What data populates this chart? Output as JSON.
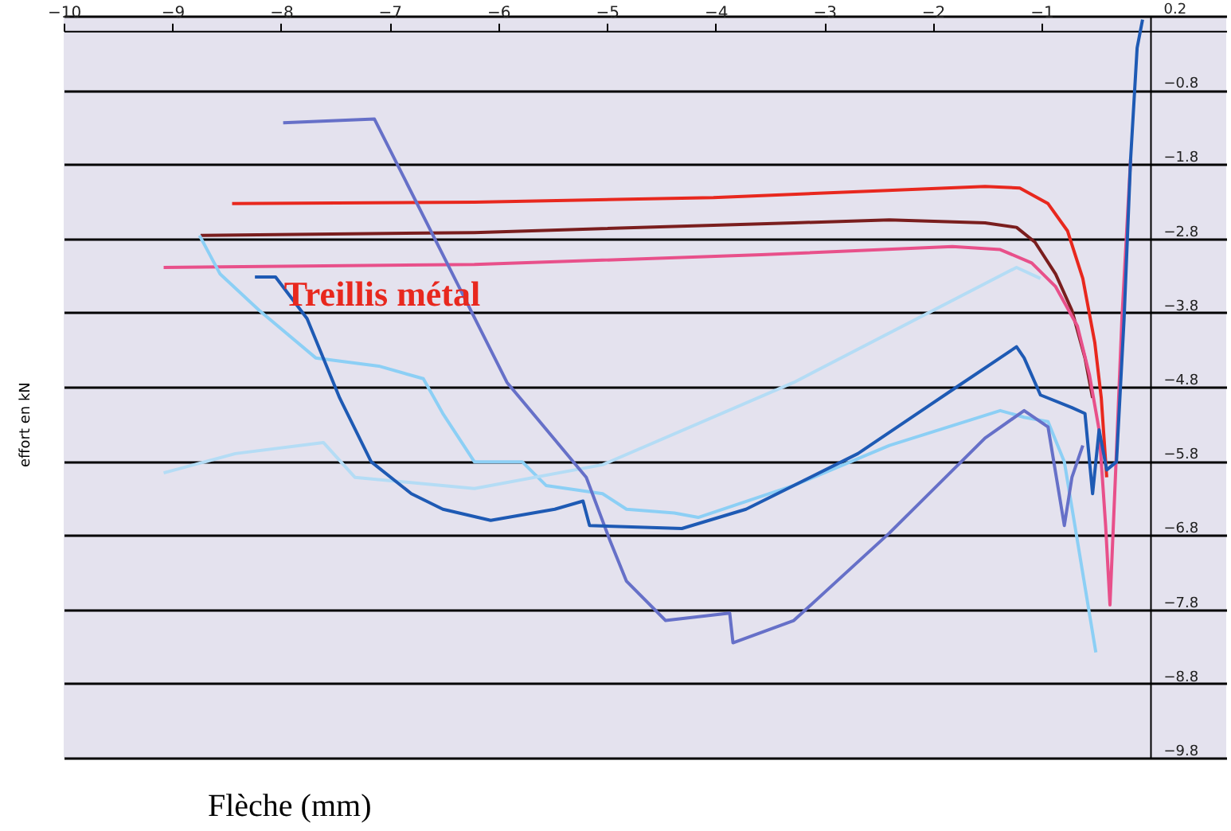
{
  "chart_data": {
    "type": "line",
    "xlabel": "Flèche (mm)",
    "ylabel": "effort en kN",
    "xlim": [
      -10,
      0.7
    ],
    "xticks": [
      -10,
      -9,
      -8,
      -7,
      -6,
      -5,
      -4,
      -3,
      -2,
      -1
    ],
    "ylim": [
      -9.8,
      0.2
    ],
    "yticks": [
      0.2,
      -0.8,
      -1.8,
      -2.8,
      -3.8,
      -4.8,
      -5.8,
      -6.8,
      -7.8,
      -8.8,
      -9.8
    ],
    "grid": "y",
    "marker": "none",
    "line_style": "solid",
    "annotations": [
      "Treillis métal"
    ],
    "series": [
      {
        "color": "#e8281e",
        "x": [
          -8.45,
          -6.22,
          -4.02,
          -2.55,
          -1.52,
          -1.2,
          -0.94,
          -0.76,
          -0.62,
          -0.51,
          -0.45,
          -0.4
        ],
        "values": [
          -2.33,
          -2.31,
          -2.25,
          -2.16,
          -2.1,
          -2.12,
          -2.33,
          -2.7,
          -3.34,
          -4.2,
          -4.95,
          -6.02
        ]
      },
      {
        "color": "#7a1e1e",
        "x": [
          -8.74,
          -6.22,
          -3.28,
          -2.4,
          -1.52,
          -1.23,
          -1.06,
          -0.87,
          -0.72,
          -0.6,
          -0.53
        ],
        "values": [
          -2.76,
          -2.72,
          -2.59,
          -2.55,
          -2.59,
          -2.65,
          -2.85,
          -3.28,
          -3.77,
          -4.41,
          -4.95
        ]
      },
      {
        "color": "#e8508a",
        "x": [
          -9.08,
          -6.22,
          -3.58,
          -1.82,
          -1.38,
          -1.09,
          -0.87,
          -0.67,
          -0.56,
          -0.47,
          -0.41,
          -0.37,
          -0.32,
          -0.26,
          -0.18
        ],
        "values": [
          -3.19,
          -3.15,
          -3.02,
          -2.91,
          -2.95,
          -3.13,
          -3.45,
          -3.98,
          -4.63,
          -5.38,
          -6.67,
          -7.74,
          -6.02,
          -3.88,
          -1.73
        ]
      },
      {
        "color": "#8ccff5",
        "x": [
          -8.75,
          -8.56,
          -8.2,
          -7.68,
          -7.1,
          -6.69,
          -6.51,
          -6.22,
          -5.78,
          -5.56,
          -5.04,
          -4.82,
          -4.38,
          -4.16,
          -3.28,
          -2.4,
          -1.38,
          -1.16,
          -0.94,
          -0.79,
          -0.5
        ],
        "values": [
          -2.76,
          -3.28,
          -3.77,
          -4.41,
          -4.52,
          -4.69,
          -5.16,
          -5.81,
          -5.81,
          -6.13,
          -6.24,
          -6.45,
          -6.5,
          -6.56,
          -6.13,
          -5.59,
          -5.12,
          -5.21,
          -5.27,
          -5.81,
          -8.38
        ]
      },
      {
        "color": "#b4dcf5",
        "x": [
          -9.08,
          -8.42,
          -7.61,
          -7.32,
          -6.22,
          -5.04,
          -3.28,
          -1.23,
          -1.01
        ],
        "values": [
          -5.96,
          -5.7,
          -5.55,
          -6.02,
          -6.17,
          -5.85,
          -4.74,
          -3.19,
          -3.34
        ]
      },
      {
        "color": "#6670c8",
        "x": [
          -7.98,
          -7.14,
          -6.51,
          -5.92,
          -5.19,
          -4.97,
          -4.82,
          -4.46,
          -3.87,
          -3.84,
          -3.28,
          -2.4,
          -1.52,
          -1.16,
          -0.94,
          -0.79,
          -0.72,
          -0.62
        ],
        "values": [
          -1.24,
          -1.19,
          -3.02,
          -4.74,
          -6.02,
          -6.88,
          -7.42,
          -7.95,
          -7.85,
          -8.25,
          -7.95,
          -6.77,
          -5.49,
          -5.12,
          -5.34,
          -6.67,
          -6.02,
          -5.59
        ]
      },
      {
        "color": "#1e5ab4",
        "x": [
          -8.24,
          -8.05,
          -7.76,
          -7.46,
          -7.17,
          -6.8,
          -6.51,
          -6.07,
          -5.48,
          -5.22,
          -5.16,
          -4.31,
          -3.72,
          -2.69,
          -1.82,
          -1.23,
          -1.16,
          -1.01,
          -0.72,
          -0.6,
          -0.53,
          -0.47,
          -0.4,
          -0.31,
          -0.24,
          -0.18,
          -0.12,
          -0.07
        ],
        "values": [
          -3.32,
          -3.32,
          -3.88,
          -4.95,
          -5.81,
          -6.24,
          -6.45,
          -6.6,
          -6.45,
          -6.34,
          -6.67,
          -6.71,
          -6.45,
          -5.7,
          -4.84,
          -4.26,
          -4.41,
          -4.91,
          -5.08,
          -5.16,
          -6.24,
          -5.38,
          -5.92,
          -5.81,
          -3.88,
          -1.73,
          -0.23,
          0.15
        ]
      }
    ]
  }
}
